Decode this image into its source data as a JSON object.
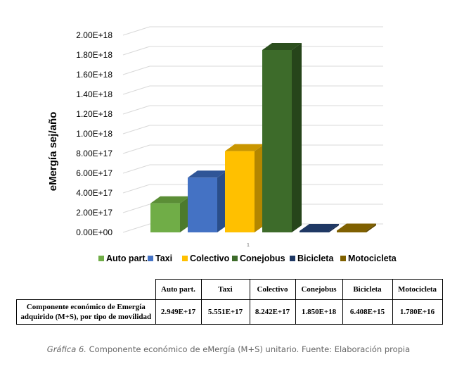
{
  "chart_data": {
    "type": "bar",
    "subtype": "3d-clustered-column",
    "title": "",
    "xlabel": "",
    "ylabel": "eMergía sej/año",
    "ylim": [
      0,
      2e+18
    ],
    "ytick_values": [
      0,
      2e+17,
      4e+17,
      6e+17,
      8e+17,
      1e+18,
      1.2e+18,
      1.4e+18,
      1.6e+18,
      1.8e+18,
      2e+18
    ],
    "ytick_labels": [
      "0.00E+00",
      "2.00E+17",
      "4.00E+17",
      "6.00E+17",
      "8.00E+17",
      "1.00E+18",
      "1.20E+18",
      "1.40E+18",
      "1.60E+18",
      "1.80E+18",
      "2.00E+18"
    ],
    "category_tick": "1",
    "legend_position": "bottom",
    "grid": true,
    "series": [
      {
        "name": "Auto part.",
        "value": 2.949e+17,
        "color": "#70ad47",
        "top": "#5b8e36",
        "side": "#4c7a2c"
      },
      {
        "name": "Taxi",
        "value": 5.551e+17,
        "color": "#4472c4",
        "top": "#2f5597",
        "side": "#2a4e8a"
      },
      {
        "name": "Colectivo",
        "value": 8.242e+17,
        "color": "#ffc000",
        "top": "#c99600",
        "side": "#b38600"
      },
      {
        "name": "Conejobus",
        "value": 1.85e+18,
        "color": "#3d6b2a",
        "top": "#2c4f1e",
        "side": "#26451a"
      },
      {
        "name": "Bicicleta",
        "value": 6408000000000000.0,
        "color": "#1f3864",
        "top": "#1f3864",
        "side": "#172a4d"
      },
      {
        "name": "Motocicleta",
        "value": 1.78e+16,
        "color": "#7f6000",
        "top": "#7f6000",
        "side": "#634a00"
      }
    ]
  },
  "table": {
    "headers": [
      "Auto part.",
      "Taxi",
      "Colectivo",
      "Conejobus",
      "Bicicleta",
      "Motocicleta"
    ],
    "row_label": "Componente económico de Emergía adquirido (M+S), por tipo de movilidad",
    "values": [
      "2.949E+17",
      "5.551E+17",
      "8.242E+17",
      "1.850E+18",
      "6.408E+15",
      "1.780E+16"
    ]
  },
  "caption": {
    "label": "Gráfica 6.",
    "text": " Componente económico de eMergía (M+S) unitario. Fuente: Elaboración propia"
  }
}
